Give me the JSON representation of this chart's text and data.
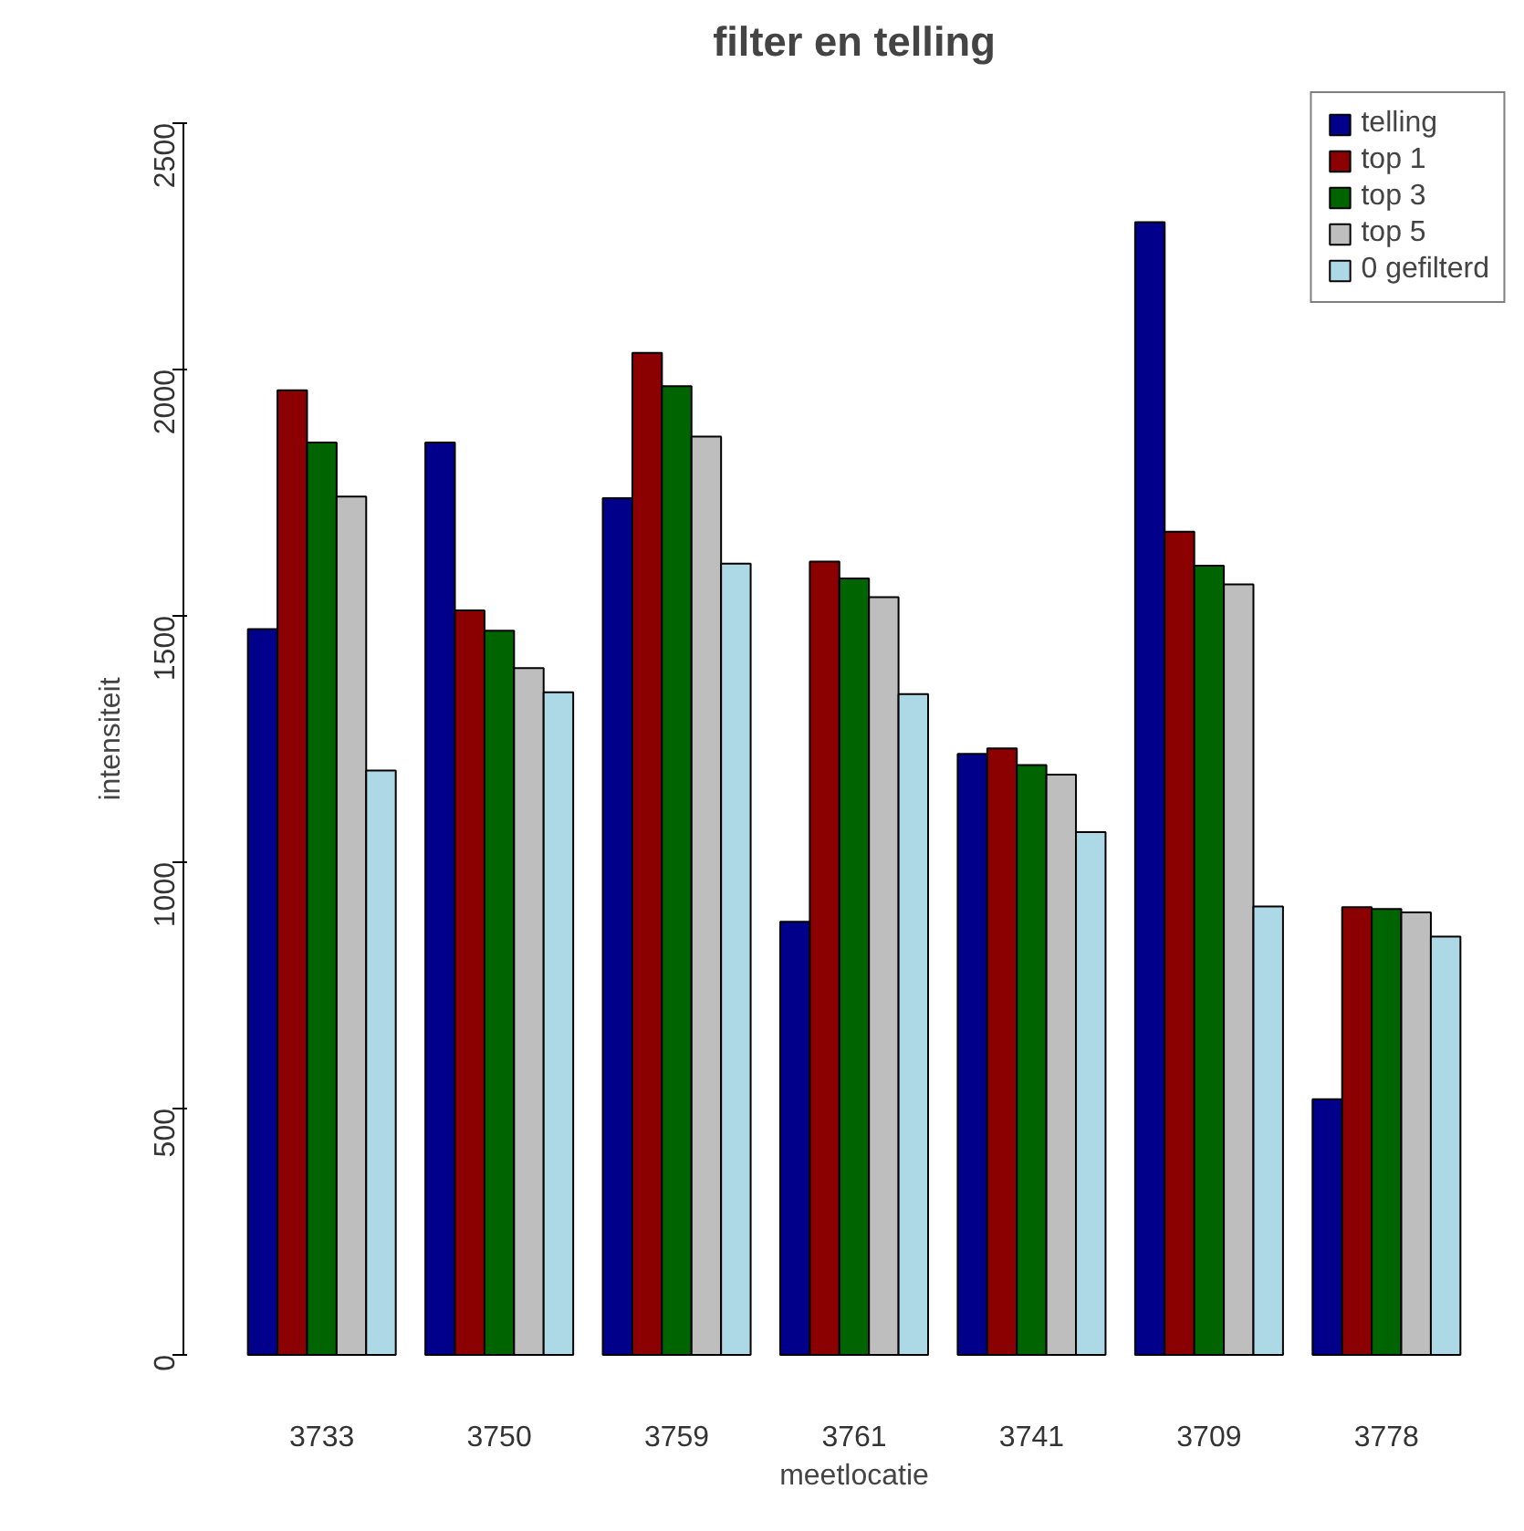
{
  "chart_data": {
    "type": "bar",
    "title": "filter en telling",
    "xlabel": "meetlocatie",
    "ylabel": "intensiteit",
    "categories": [
      "3733",
      "3750",
      "3759",
      "3761",
      "3741",
      "3709",
      "3778"
    ],
    "series": [
      {
        "name": "telling",
        "color": "#00008b",
        "values": [
          1473,
          1852,
          1739,
          879,
          1220,
          2299,
          519
        ]
      },
      {
        "name": "top 1",
        "color": "#8b0000",
        "values": [
          1958,
          1511,
          2034,
          1610,
          1231,
          1671,
          909
        ]
      },
      {
        "name": "top 3",
        "color": "#006400",
        "values": [
          1852,
          1470,
          1966,
          1576,
          1197,
          1602,
          905
        ]
      },
      {
        "name": "top 5",
        "color": "#bebebe",
        "values": [
          1742,
          1394,
          1864,
          1538,
          1178,
          1564,
          898
        ]
      },
      {
        "name": "0 gefilterd",
        "color": "#add8e6",
        "values": [
          1186,
          1345,
          1606,
          1341,
          1061,
          910,
          849
        ]
      }
    ],
    "ylim": [
      0,
      2500
    ],
    "yticks": [
      0,
      500,
      1000,
      1500,
      2000,
      2500
    ],
    "legend": "top right",
    "grid": false
  }
}
